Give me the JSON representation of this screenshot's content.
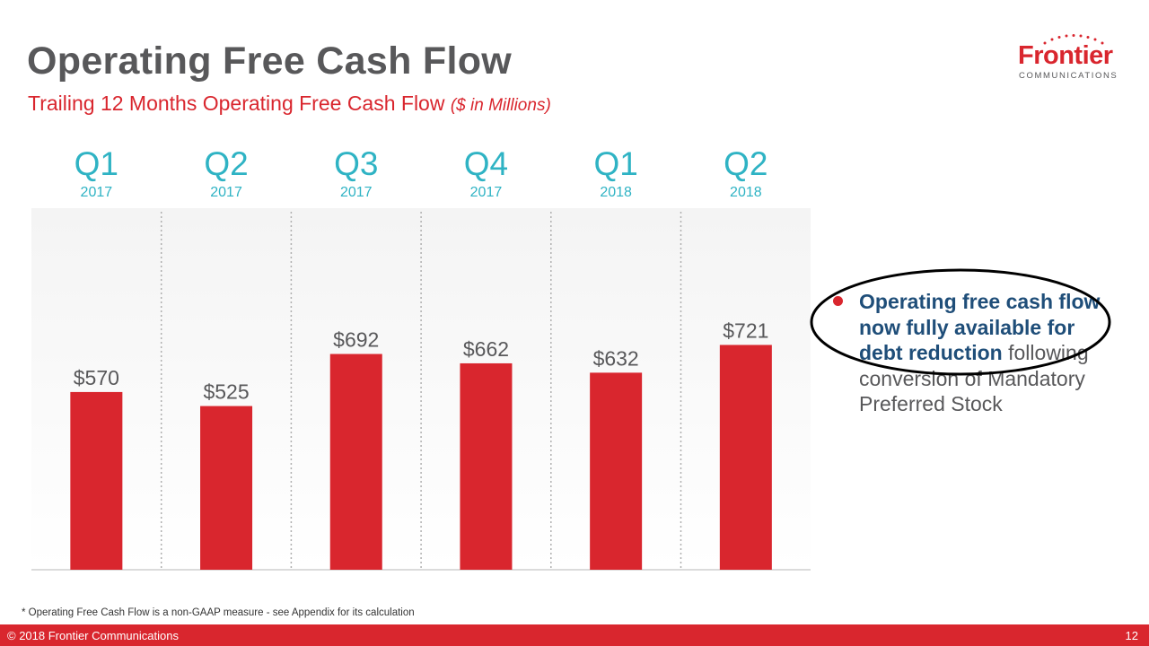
{
  "slide": {
    "title": "Operating Free Cash Flow",
    "subtitle_main": "Trailing 12 Months Operating Free Cash Flow",
    "subtitle_units": "($ in Millions)",
    "footnote": "* Operating Free Cash Flow is a non-GAAP measure - see Appendix for its calculation",
    "copyright": "© 2018 Frontier Communications",
    "page_number": "12"
  },
  "logo": {
    "name": "Frontier",
    "tagline": "COMMUNICATIONS"
  },
  "bullet": {
    "bold_text": "Operating free cash flow now fully available for debt reduction",
    "rest_text": " following conversion of Mandatory Preferred Stock"
  },
  "colors": {
    "brand_red": "#d9262e",
    "quarter_teal": "#2fb3c4",
    "title_gray": "#58585a",
    "bullet_blue": "#1f4e79"
  },
  "chart_data": {
    "type": "bar",
    "categories": [
      {
        "quarter": "Q1",
        "year": "2017"
      },
      {
        "quarter": "Q2",
        "year": "2017"
      },
      {
        "quarter": "Q3",
        "year": "2017"
      },
      {
        "quarter": "Q4",
        "year": "2017"
      },
      {
        "quarter": "Q1",
        "year": "2018"
      },
      {
        "quarter": "Q2",
        "year": "2018"
      }
    ],
    "values": [
      570,
      525,
      692,
      662,
      632,
      721
    ],
    "value_labels": [
      "$570",
      "$525",
      "$692",
      "$662",
      "$632",
      "$721"
    ],
    "grid": false
  }
}
